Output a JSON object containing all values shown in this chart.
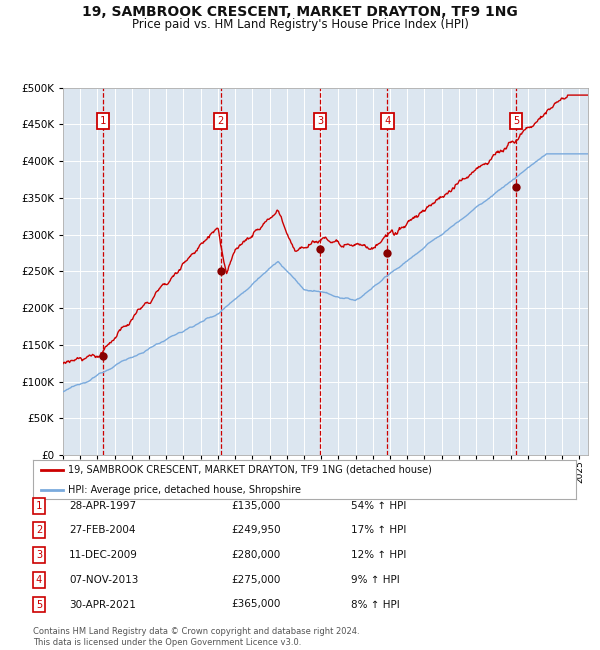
{
  "title": "19, SAMBROOK CRESCENT, MARKET DRAYTON, TF9 1NG",
  "subtitle": "Price paid vs. HM Land Registry's House Price Index (HPI)",
  "title_fontsize": 10,
  "subtitle_fontsize": 8.5,
  "background_color": "#ffffff",
  "plot_bg_color": "#dce6f0",
  "grid_color": "#ffffff",
  "xlim_start": 1995.0,
  "xlim_end": 2025.5,
  "ylim_min": 0,
  "ylim_max": 500000,
  "sale_dates": [
    1997.32,
    2004.16,
    2009.94,
    2013.84,
    2021.33
  ],
  "sale_prices": [
    135000,
    249950,
    280000,
    275000,
    365000
  ],
  "sale_labels": [
    "1",
    "2",
    "3",
    "4",
    "5"
  ],
  "sale_table": [
    {
      "num": "1",
      "date": "28-APR-1997",
      "price": "£135,000",
      "hpi": "54% ↑ HPI"
    },
    {
      "num": "2",
      "date": "27-FEB-2004",
      "price": "£249,950",
      "hpi": "17% ↑ HPI"
    },
    {
      "num": "3",
      "date": "11-DEC-2009",
      "price": "£280,000",
      "hpi": "12% ↑ HPI"
    },
    {
      "num": "4",
      "date": "07-NOV-2013",
      "price": "£275,000",
      "hpi": "9% ↑ HPI"
    },
    {
      "num": "5",
      "date": "30-APR-2021",
      "price": "£365,000",
      "hpi": "8% ↑ HPI"
    }
  ],
  "legend_line1": "19, SAMBROOK CRESCENT, MARKET DRAYTON, TF9 1NG (detached house)",
  "legend_line2": "HPI: Average price, detached house, Shropshire",
  "footer": "Contains HM Land Registry data © Crown copyright and database right 2024.\nThis data is licensed under the Open Government Licence v3.0.",
  "line_color_red": "#cc0000",
  "line_color_blue": "#7aaadd",
  "dot_color": "#880000",
  "vline_color": "#cc0000",
  "box_color": "#cc0000"
}
